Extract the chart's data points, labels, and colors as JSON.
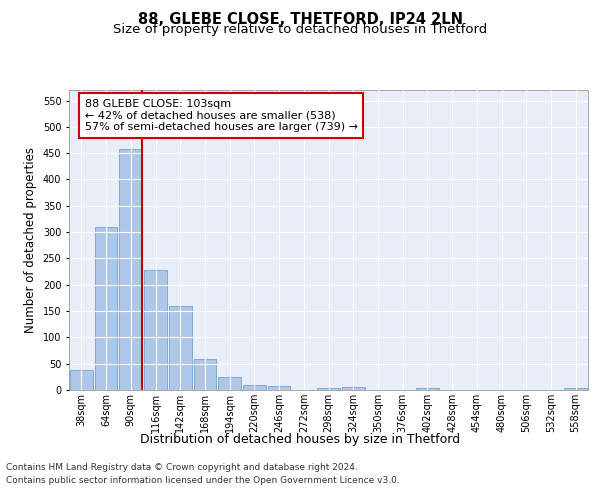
{
  "title": "88, GLEBE CLOSE, THETFORD, IP24 2LN",
  "subtitle": "Size of property relative to detached houses in Thetford",
  "xlabel": "Distribution of detached houses by size in Thetford",
  "ylabel": "Number of detached properties",
  "categories": [
    "38sqm",
    "64sqm",
    "90sqm",
    "116sqm",
    "142sqm",
    "168sqm",
    "194sqm",
    "220sqm",
    "246sqm",
    "272sqm",
    "298sqm",
    "324sqm",
    "350sqm",
    "376sqm",
    "402sqm",
    "428sqm",
    "454sqm",
    "480sqm",
    "506sqm",
    "532sqm",
    "558sqm"
  ],
  "values": [
    38,
    310,
    457,
    228,
    160,
    58,
    25,
    10,
    8,
    0,
    4,
    5,
    0,
    0,
    4,
    0,
    0,
    0,
    0,
    0,
    4
  ],
  "bar_color": "#aec6e8",
  "bar_edge_color": "#5b9bc8",
  "highlighted_bar_index": 2,
  "highlight_line_color": "#cc0000",
  "annotation_line1": "88 GLEBE CLOSE: 103sqm",
  "annotation_line2": "← 42% of detached houses are smaller (538)",
  "annotation_line3": "57% of semi-detached houses are larger (739) →",
  "annotation_box_color": "#cc0000",
  "annotation_box_bg": "#ffffff",
  "ylim": [
    0,
    570
  ],
  "yticks": [
    0,
    50,
    100,
    150,
    200,
    250,
    300,
    350,
    400,
    450,
    500,
    550
  ],
  "background_color": "#e8edf8",
  "grid_color": "#ffffff",
  "footer_line1": "Contains HM Land Registry data © Crown copyright and database right 2024.",
  "footer_line2": "Contains public sector information licensed under the Open Government Licence v3.0.",
  "title_fontsize": 10.5,
  "subtitle_fontsize": 9.5,
  "xlabel_fontsize": 9,
  "ylabel_fontsize": 8.5,
  "tick_fontsize": 7,
  "annotation_fontsize": 8,
  "footer_fontsize": 6.5
}
